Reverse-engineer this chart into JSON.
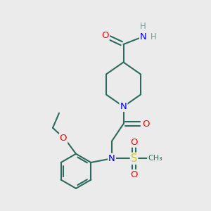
{
  "bg_color": "#ebebeb",
  "bond_color": "#2d6b5e",
  "atom_colors": {
    "O": "#ff0000",
    "N": "#0000ee",
    "S": "#cccc00",
    "C": "#2d6b5e",
    "H": "#7a9a9a"
  },
  "figsize": [
    3.0,
    3.0
  ],
  "dpi": 100
}
